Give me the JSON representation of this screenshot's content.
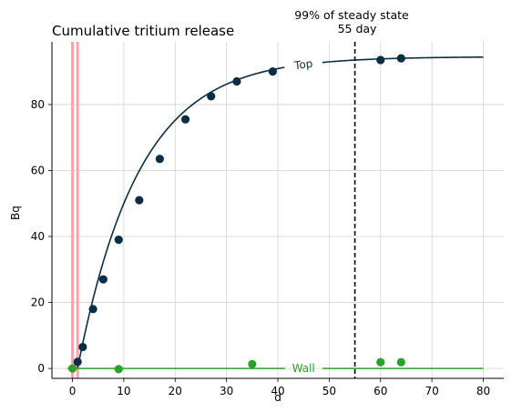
{
  "chart_data": {
    "type": "scatter",
    "title": "Cumulative tritium release",
    "xlabel": "d",
    "ylabel": "Bq",
    "xlim": [
      -4,
      84
    ],
    "ylim": [
      -3,
      99
    ],
    "xticks": [
      0,
      10,
      20,
      30,
      40,
      50,
      60,
      70,
      80
    ],
    "yticks": [
      0,
      20,
      40,
      60,
      80
    ],
    "grid": true,
    "series": [
      {
        "name": "Top",
        "color": "#0a2e45",
        "label_at_x": 45,
        "curve": {
          "plateau": 94.5,
          "rate": 0.0837,
          "x_start": 1,
          "x_end": 80
        },
        "points": [
          {
            "x": 1,
            "y": 2
          },
          {
            "x": 2,
            "y": 6.5
          },
          {
            "x": 4,
            "y": 18
          },
          {
            "x": 6,
            "y": 27
          },
          {
            "x": 9,
            "y": 39
          },
          {
            "x": 13,
            "y": 51
          },
          {
            "x": 17,
            "y": 63.5
          },
          {
            "x": 22,
            "y": 75.5
          },
          {
            "x": 27,
            "y": 82.5
          },
          {
            "x": 32,
            "y": 87
          },
          {
            "x": 39,
            "y": 90
          },
          {
            "x": 60,
            "y": 93.5
          },
          {
            "x": 64,
            "y": 94
          }
        ]
      },
      {
        "name": "Wall",
        "color": "#2ca02c",
        "label_at_x": 45,
        "curve": {
          "plateau": 0,
          "rate": 0,
          "x_start": -1,
          "x_end": 80
        },
        "points": [
          {
            "x": 0,
            "y": 0
          },
          {
            "x": 9,
            "y": -0.2
          },
          {
            "x": 35,
            "y": 1.3
          },
          {
            "x": 60,
            "y": 1.9
          },
          {
            "x": 64,
            "y": 1.9
          }
        ]
      }
    ],
    "vlines": [
      {
        "x": 0,
        "color": "#f4a7a9"
      },
      {
        "x": 1,
        "color": "#f4a7a9"
      }
    ],
    "threshold": {
      "x": 55,
      "label": "99% of steady state",
      "sublabel": "55 day"
    }
  }
}
